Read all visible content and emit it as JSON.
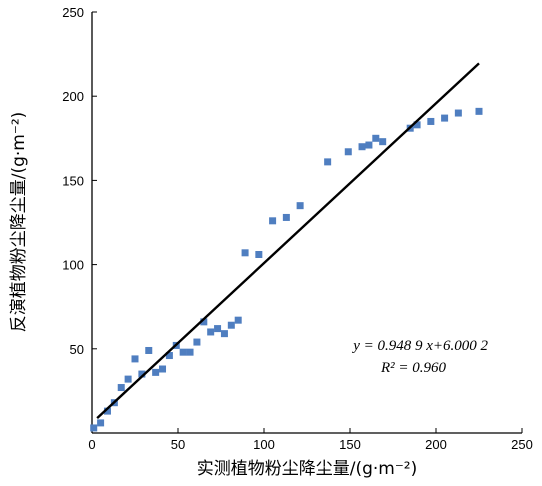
{
  "chart_data": {
    "type": "scatter",
    "xlabel": "实测植物粉尘降尘量/(g·m⁻²)",
    "ylabel": "反演植物粉尘降尘量/(g·m⁻²)",
    "xlim": [
      0,
      250
    ],
    "ylim": [
      0,
      250
    ],
    "x_ticks": [
      "0",
      "50",
      "100",
      "150",
      "200",
      "250"
    ],
    "y_ticks": [
      "50",
      "100",
      "150",
      "200",
      "250"
    ],
    "grid": false,
    "marker_color": "#4f7ec0",
    "line_color": "#000000",
    "points": [
      [
        1,
        3
      ],
      [
        5,
        6
      ],
      [
        9,
        13
      ],
      [
        13,
        18
      ],
      [
        17,
        27
      ],
      [
        21,
        32
      ],
      [
        25,
        44
      ],
      [
        29,
        35
      ],
      [
        33,
        49
      ],
      [
        37,
        36
      ],
      [
        41,
        38
      ],
      [
        45,
        46
      ],
      [
        49,
        52
      ],
      [
        53,
        48
      ],
      [
        57,
        48
      ],
      [
        61,
        54
      ],
      [
        65,
        66
      ],
      [
        69,
        60
      ],
      [
        73,
        62
      ],
      [
        77,
        59
      ],
      [
        81,
        64
      ],
      [
        85,
        67
      ],
      [
        89,
        107
      ],
      [
        97,
        106
      ],
      [
        105,
        126
      ],
      [
        113,
        128
      ],
      [
        121,
        135
      ],
      [
        137,
        161
      ],
      [
        149,
        167
      ],
      [
        157,
        170
      ],
      [
        161,
        171
      ],
      [
        165,
        175
      ],
      [
        169,
        173
      ],
      [
        185,
        181
      ],
      [
        189,
        183
      ],
      [
        197,
        185
      ],
      [
        205,
        187
      ],
      [
        213,
        190
      ],
      [
        225,
        191
      ]
    ],
    "fit": {
      "slope": 0.9489,
      "intercept": 6.0002,
      "x_range": [
        3,
        225
      ]
    },
    "annotation": {
      "equation": "y = 0.948 9 x+6.000 2",
      "r2": "R² = 0.960"
    }
  }
}
